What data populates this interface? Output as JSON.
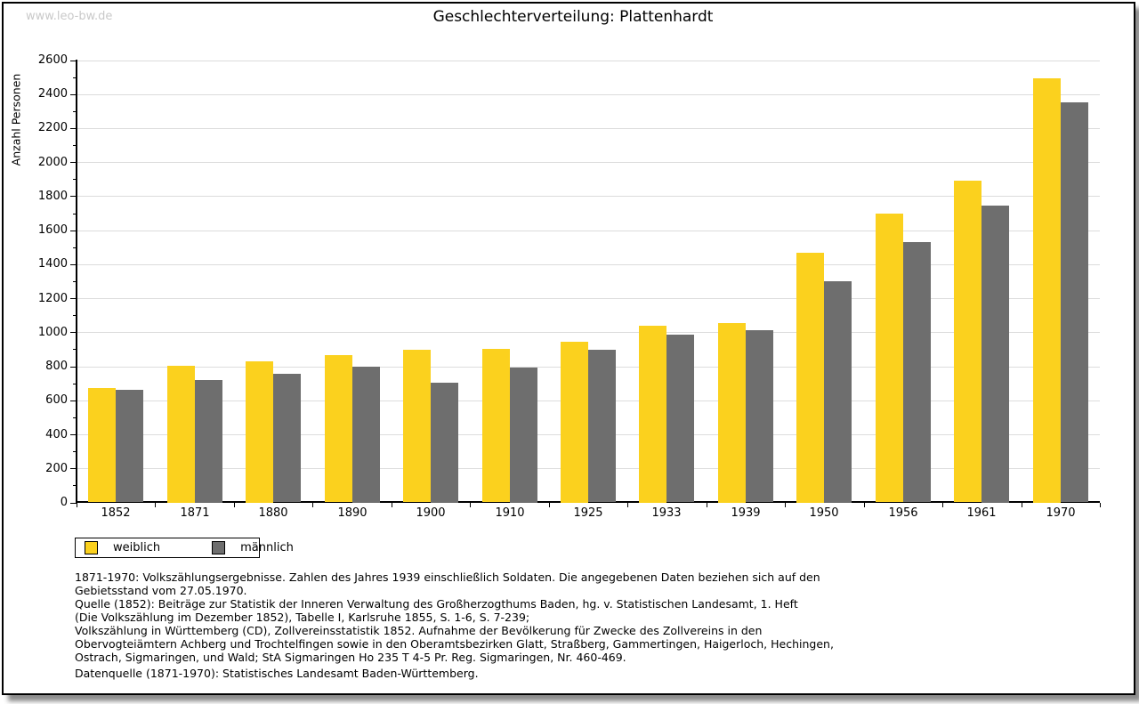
{
  "watermark": "www.leo-bw.de",
  "title": "Geschlechterverteilung: Plattenhardt",
  "chart_data": {
    "type": "bar",
    "title": "Geschlechterverteilung: Plattenhardt",
    "xlabel": "",
    "ylabel": "Anzahl Personen",
    "categories": [
      "1852",
      "1871",
      "1880",
      "1890",
      "1900",
      "1910",
      "1925",
      "1933",
      "1939",
      "1950",
      "1956",
      "1961",
      "1970"
    ],
    "series": [
      {
        "name": "weiblich",
        "color": "#FBD11E",
        "values": [
          670,
          805,
          830,
          865,
          895,
          900,
          945,
          1040,
          1055,
          1470,
          1695,
          1890,
          2495
        ]
      },
      {
        "name": "männlich",
        "color": "#6E6E6E",
        "values": [
          660,
          720,
          755,
          800,
          705,
          795,
          895,
          985,
          1010,
          1300,
          1530,
          1745,
          2350
        ]
      }
    ],
    "ylim": [
      0,
      2600
    ],
    "ytick_step": 200,
    "yminor_step": 100,
    "grid": "horizontal",
    "gridline_color": "#dcdcdc",
    "legend_position": "bottom-left"
  },
  "footnotes": {
    "lines": [
      "1871-1970: Volkszählungsergebnisse. Zahlen des Jahres 1939 einschließlich Soldaten. Die angegebenen Daten beziehen sich auf den",
      "Gebietsstand vom 27.05.1970.",
      "Quelle (1852): Beiträge zur Statistik der Inneren Verwaltung des Großherzogthums Baden, hg. v. Statistischen Landesamt, 1. Heft",
      "(Die Volkszählung im Dezember 1852), Tabelle I, Karlsruhe 1855, S. 1-6, S. 7-239;",
      "Volkszählung in Württemberg (CD), Zollvereinsstatistik 1852. Aufnahme der Bevölkerung für Zwecke des Zollvereins in den",
      "Obervogteiämtern Achberg und Trochtelfingen sowie in den Oberamtsbezirken Glatt, Straßberg, Gammertingen, Haigerloch, Hechingen,",
      "Ostrach, Sigmaringen, und Wald; StA Sigmaringen Ho 235 T 4-5 Pr. Reg. Sigmaringen, Nr. 460-469."
    ],
    "datenquelle": "Datenquelle (1871-1970): Statistisches Landesamt Baden-Württemberg."
  }
}
